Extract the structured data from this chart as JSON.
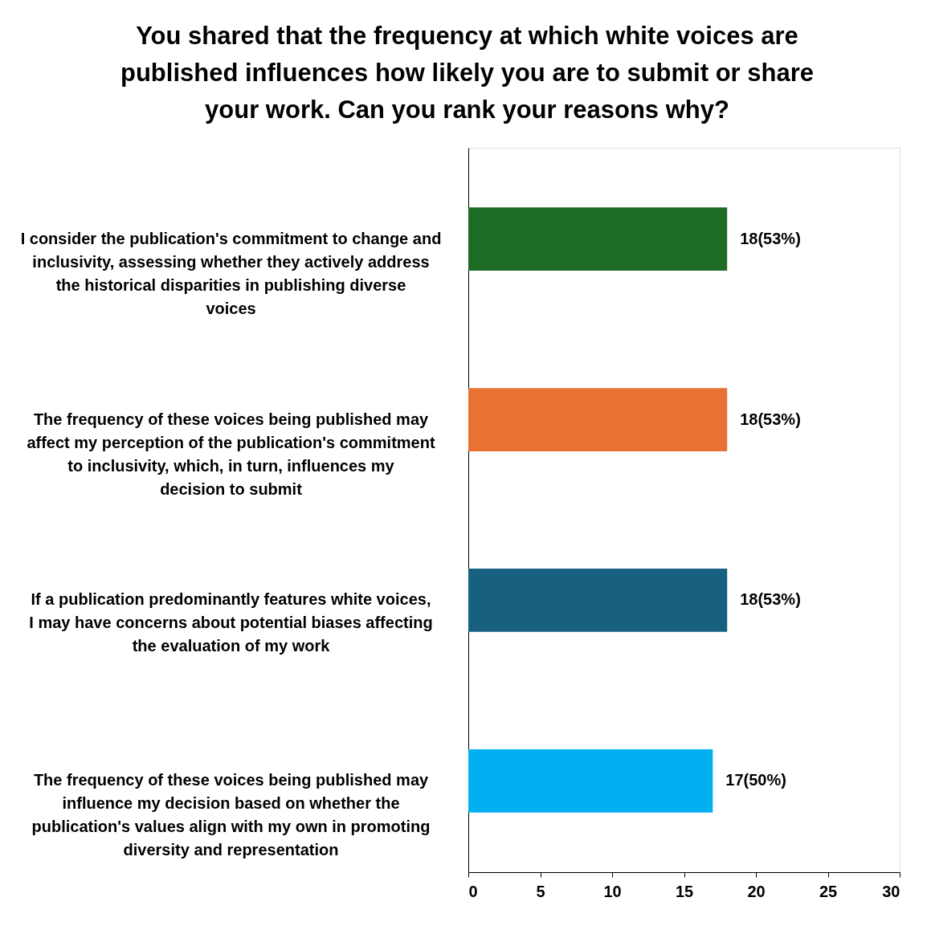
{
  "chart_data": {
    "type": "bar",
    "orientation": "horizontal",
    "title": "You shared that the frequency at which white voices are published influences how likely you are to submit or share your work. Can you rank your reasons why?",
    "categories": [
      "I consider the publication's commitment to change and inclusivity, assessing whether they actively address the historical disparities in publishing diverse voices",
      "The frequency of these voices being published may affect my perception of the publication's commitment to inclusivity, which, in turn, influences my decision to submit",
      "If a publication predominantly features white voices, I may have concerns about potential biases affecting the evaluation of my work",
      "The frequency of these voices being published may influence my decision based on whether the publication's values align with my own in promoting diversity and representation"
    ],
    "values": [
      18,
      18,
      18,
      17
    ],
    "colors": [
      "#1e6b24",
      "#e87133",
      "#17607f",
      "#00b0f0"
    ],
    "value_labels": [
      "18(53%)",
      "18(53%)",
      "18(53%)",
      "17(50%)"
    ],
    "xlim": [
      0,
      30
    ],
    "xticks": [
      0,
      5,
      10,
      15,
      20,
      25,
      30
    ],
    "grid": false
  }
}
